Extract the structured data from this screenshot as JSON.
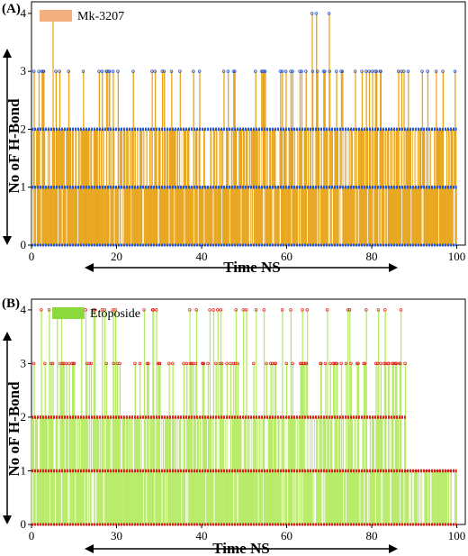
{
  "chart_data": [
    {
      "type": "area",
      "panel_label": "(A)",
      "xlabel": "Time NS",
      "ylabel": "No oF  H-Bond",
      "xlim": [
        0,
        102
      ],
      "ylim": [
        0,
        4.2
      ],
      "xticks": [
        "0",
        "20",
        "40",
        "60",
        "80",
        "100"
      ],
      "yticks": [
        "0",
        "1",
        "2",
        "3",
        "4"
      ],
      "legend_placement": "top-left",
      "series": [
        {
          "name": "Mk-3207",
          "color": "#E8A317",
          "legend_color": "#F2B07E",
          "marker_color": "#2255DD",
          "time_range": [
            0,
            100
          ],
          "dominant_values": [
            1,
            2
          ],
          "occasional_values": [
            0,
            3
          ],
          "rare_value": 4,
          "peak_times_value_4": [
            5,
            66,
            67,
            70
          ]
        }
      ],
      "grid": false
    },
    {
      "type": "area",
      "panel_label": "(B)",
      "xlabel": "Time NS",
      "ylabel": "No oF  H-Bond",
      "xlim": [
        0,
        102
      ],
      "ylim": [
        0,
        4.2
      ],
      "xticks": [
        "0",
        "30",
        "40",
        "60",
        "80",
        "100"
      ],
      "yticks": [
        "0",
        "1",
        "2",
        "3",
        "4"
      ],
      "legend_placement": "top-left",
      "series": [
        {
          "name": "Etoposide",
          "color": "#B5EB63",
          "legend_color": "#8CD93C",
          "marker_color": "#DD1F1F",
          "time_range": [
            0,
            100
          ],
          "dominant_values": [
            1,
            2
          ],
          "occasional_values": [
            0,
            3,
            4
          ],
          "value_after_88ns": [
            0,
            1
          ]
        }
      ],
      "grid": false
    }
  ]
}
